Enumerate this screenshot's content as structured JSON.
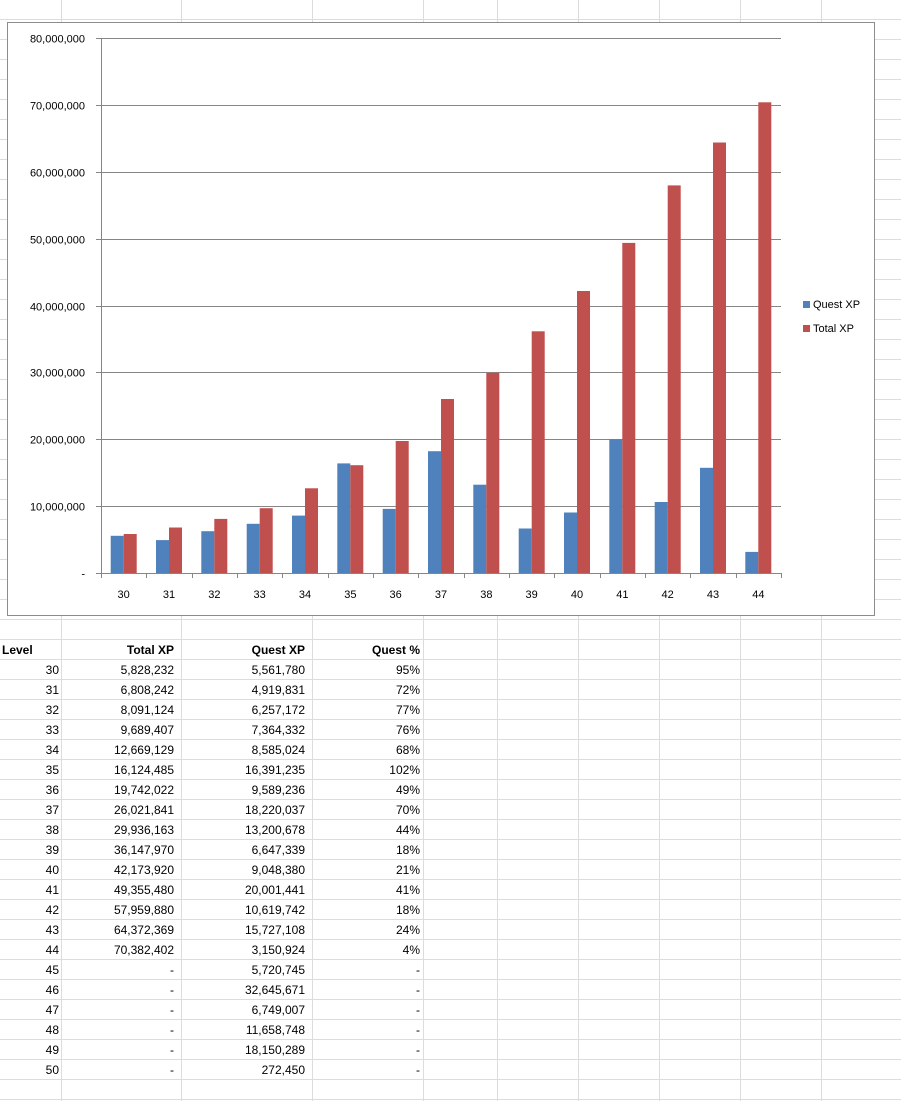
{
  "chart_data": {
    "type": "bar",
    "categories": [
      "30",
      "31",
      "32",
      "33",
      "34",
      "35",
      "36",
      "37",
      "38",
      "39",
      "40",
      "41",
      "42",
      "43",
      "44"
    ],
    "series": [
      {
        "name": "Quest XP",
        "color": "#4f81bd",
        "values": [
          5561780,
          4919831,
          6257172,
          7364332,
          8585024,
          16391235,
          9589236,
          18220037,
          13200678,
          6647339,
          9048380,
          20001441,
          10619742,
          15727108,
          3150924
        ]
      },
      {
        "name": "Total XP",
        "color": "#c0504d",
        "values": [
          5828232,
          6808242,
          8091124,
          9689407,
          12669129,
          16124485,
          19742022,
          26021841,
          29936163,
          36147970,
          42173920,
          49355480,
          57959880,
          64372369,
          70382402
        ]
      }
    ],
    "ylim": [
      0,
      80000000
    ],
    "yticks": [
      "-",
      "10,000,000",
      "20,000,000",
      "30,000,000",
      "40,000,000",
      "50,000,000",
      "60,000,000",
      "70,000,000",
      "80,000,000"
    ],
    "grid": true,
    "legend": "right"
  },
  "table": {
    "headers": [
      "Level",
      "Total XP",
      "Quest XP",
      "Quest %"
    ],
    "rows": [
      [
        "30",
        "5,828,232",
        "5,561,780",
        "95%"
      ],
      [
        "31",
        "6,808,242",
        "4,919,831",
        "72%"
      ],
      [
        "32",
        "8,091,124",
        "6,257,172",
        "77%"
      ],
      [
        "33",
        "9,689,407",
        "7,364,332",
        "76%"
      ],
      [
        "34",
        "12,669,129",
        "8,585,024",
        "68%"
      ],
      [
        "35",
        "16,124,485",
        "16,391,235",
        "102%"
      ],
      [
        "36",
        "19,742,022",
        "9,589,236",
        "49%"
      ],
      [
        "37",
        "26,021,841",
        "18,220,037",
        "70%"
      ],
      [
        "38",
        "29,936,163",
        "13,200,678",
        "44%"
      ],
      [
        "39",
        "36,147,970",
        "6,647,339",
        "18%"
      ],
      [
        "40",
        "42,173,920",
        "9,048,380",
        "21%"
      ],
      [
        "41",
        "49,355,480",
        "20,001,441",
        "41%"
      ],
      [
        "42",
        "57,959,880",
        "10,619,742",
        "18%"
      ],
      [
        "43",
        "64,372,369",
        "15,727,108",
        "24%"
      ],
      [
        "44",
        "70,382,402",
        "3,150,924",
        "4%"
      ],
      [
        "45",
        "-",
        "5,720,745",
        "-"
      ],
      [
        "46",
        "-",
        "32,645,671",
        "-"
      ],
      [
        "47",
        "-",
        "6,749,007",
        "-"
      ],
      [
        "48",
        "-",
        "11,658,748",
        "-"
      ],
      [
        "49",
        "-",
        "18,150,289",
        "-"
      ],
      [
        "50",
        "-",
        "272,450",
        "-"
      ]
    ]
  },
  "colors": {
    "gridline": "#dadcdd",
    "axis": "#868686"
  }
}
